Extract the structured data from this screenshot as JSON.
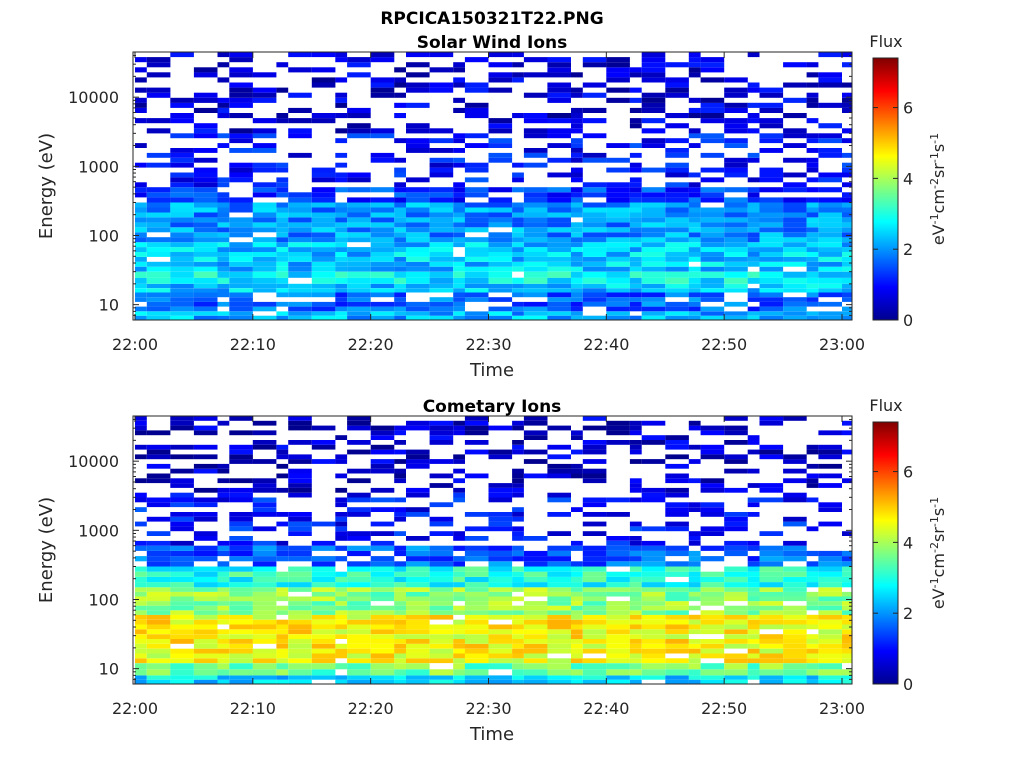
{
  "figure_title": "RPCICA150321T22.PNG",
  "colorscale": [
    "#00008f",
    "#0000ff",
    "#0080ff",
    "#00ffff",
    "#80ff80",
    "#ffff00",
    "#ff8000",
    "#ff0000",
    "#800000"
  ],
  "chart_data": [
    {
      "type": "heatmap",
      "title": "Solar Wind Ions",
      "xlabel": "Time",
      "ylabel": "Energy (eV)",
      "yscale": "log",
      "x_ticks": [
        "22:00",
        "22:10",
        "22:20",
        "22:30",
        "22:40",
        "22:50",
        "23:00"
      ],
      "y_ticks": [
        "10",
        "100",
        "1000",
        "10000"
      ],
      "xlim": [
        "22:00",
        "23:00"
      ],
      "ylim": [
        6,
        45000
      ],
      "colorbar": {
        "title": "Flux",
        "label": "eV-1cm-2sr-1s-1",
        "ticks": [
          "0",
          "2",
          "4",
          "6"
        ],
        "range": [
          0,
          7.4
        ]
      },
      "scan_times": [
        "22:00",
        "22:01",
        "22:03",
        "22:05",
        "22:07",
        "22:08",
        "22:10",
        "22:12",
        "22:13",
        "22:15",
        "22:17",
        "22:18",
        "22:20",
        "22:22",
        "22:23",
        "22:25",
        "22:27",
        "22:28",
        "22:30",
        "22:32",
        "22:33",
        "22:35",
        "22:37",
        "22:38",
        "22:40",
        "22:42",
        "22:43",
        "22:45",
        "22:47",
        "22:48",
        "22:50",
        "22:52",
        "22:53",
        "22:55",
        "22:57",
        "22:58",
        "23:00"
      ],
      "flux_profile": [
        {
          "energy_range": [
            6,
            8
          ],
          "flux": 2.2
        },
        {
          "energy_range": [
            8,
            15
          ],
          "flux": 1.6
        },
        {
          "energy_range": [
            15,
            20
          ],
          "flux": 2.4
        },
        {
          "energy_range": [
            20,
            30
          ],
          "flux": 2.7
        },
        {
          "energy_range": [
            30,
            80
          ],
          "flux": 2.4
        },
        {
          "energy_range": [
            80,
            300
          ],
          "flux": 2.0
        },
        {
          "energy_range": [
            300,
            500
          ],
          "flux": 1.3
        },
        {
          "energy_range": [
            500,
            3000
          ],
          "flux": 1.0
        },
        {
          "energy_range": [
            3000,
            45000
          ],
          "flux": 0.6
        }
      ]
    },
    {
      "type": "heatmap",
      "title": "Cometary Ions",
      "xlabel": "Time",
      "ylabel": "Energy (eV)",
      "yscale": "log",
      "x_ticks": [
        "22:00",
        "22:10",
        "22:20",
        "22:30",
        "22:40",
        "22:50",
        "23:00"
      ],
      "y_ticks": [
        "10",
        "100",
        "1000",
        "10000"
      ],
      "xlim": [
        "22:00",
        "23:00"
      ],
      "ylim": [
        6,
        45000
      ],
      "colorbar": {
        "title": "Flux",
        "label": "eV-1cm-2sr-1s-1",
        "ticks": [
          "0",
          "2",
          "4",
          "6"
        ],
        "range": [
          0,
          7.4
        ]
      },
      "scan_times": [
        "22:00",
        "22:01",
        "22:03",
        "22:05",
        "22:07",
        "22:08",
        "22:10",
        "22:12",
        "22:13",
        "22:15",
        "22:17",
        "22:18",
        "22:20",
        "22:22",
        "22:23",
        "22:25",
        "22:27",
        "22:28",
        "22:30",
        "22:32",
        "22:33",
        "22:35",
        "22:37",
        "22:38",
        "22:40",
        "22:42",
        "22:43",
        "22:45",
        "22:47",
        "22:48",
        "22:50",
        "22:52",
        "22:53",
        "22:55",
        "22:57",
        "22:58",
        "23:00"
      ],
      "flux_profile": [
        {
          "energy_range": [
            6,
            8
          ],
          "flux": 2.5
        },
        {
          "energy_range": [
            8,
            12
          ],
          "flux": 3.6
        },
        {
          "energy_range": [
            12,
            60
          ],
          "flux": 4.6
        },
        {
          "energy_range": [
            60,
            150
          ],
          "flux": 3.8
        },
        {
          "energy_range": [
            150,
            300
          ],
          "flux": 3.0
        },
        {
          "energy_range": [
            300,
            600
          ],
          "flux": 1.6
        },
        {
          "energy_range": [
            600,
            3500
          ],
          "flux": 1.0
        },
        {
          "energy_range": [
            3500,
            45000
          ],
          "flux": 0.5
        }
      ]
    }
  ]
}
